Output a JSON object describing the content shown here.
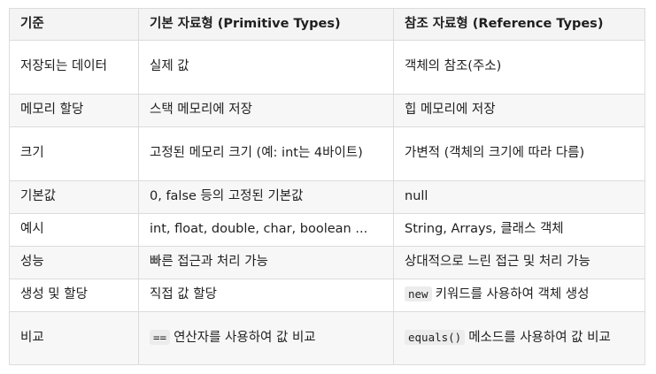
{
  "table": {
    "headers": [
      "기준",
      "기본 자료형 (Primitive Types)",
      "참조 자료형 (Reference Types)"
    ],
    "rows": [
      {
        "criterion": "저장되는 데이터",
        "primitive": "실제 값",
        "reference": "객체의 참조(주소)"
      },
      {
        "criterion": "메모리 할당",
        "primitive": "스택 메모리에 저장",
        "reference": "힙 메모리에 저장"
      },
      {
        "criterion": "크기",
        "primitive": "고정된 메모리 크기 (예: int는 4바이트)",
        "reference": "가변적 (객체의 크기에 따라 다름)"
      },
      {
        "criterion": "기본값",
        "primitive": "0, false 등의 고정된 기본값",
        "reference": "null"
      },
      {
        "criterion": "예시",
        "primitive": "int, float, double, char, boolean ...",
        "reference": "String, Arrays, 클래스 객체"
      },
      {
        "criterion": "성능",
        "primitive": "빠른 접근과 처리 가능",
        "reference": "상대적으로 느린 접근 및 처리 가능"
      },
      {
        "criterion": "생성 및 할당",
        "primitive": "직접 값 할당",
        "reference_code": "new",
        "reference": "키워드를 사용하여 객체 생성"
      },
      {
        "criterion": "비교",
        "primitive_code": "==",
        "primitive": "연산자를 사용하여 값 비교",
        "reference_code": "equals()",
        "reference": "메소드를 사용하여 값 비교"
      }
    ]
  }
}
